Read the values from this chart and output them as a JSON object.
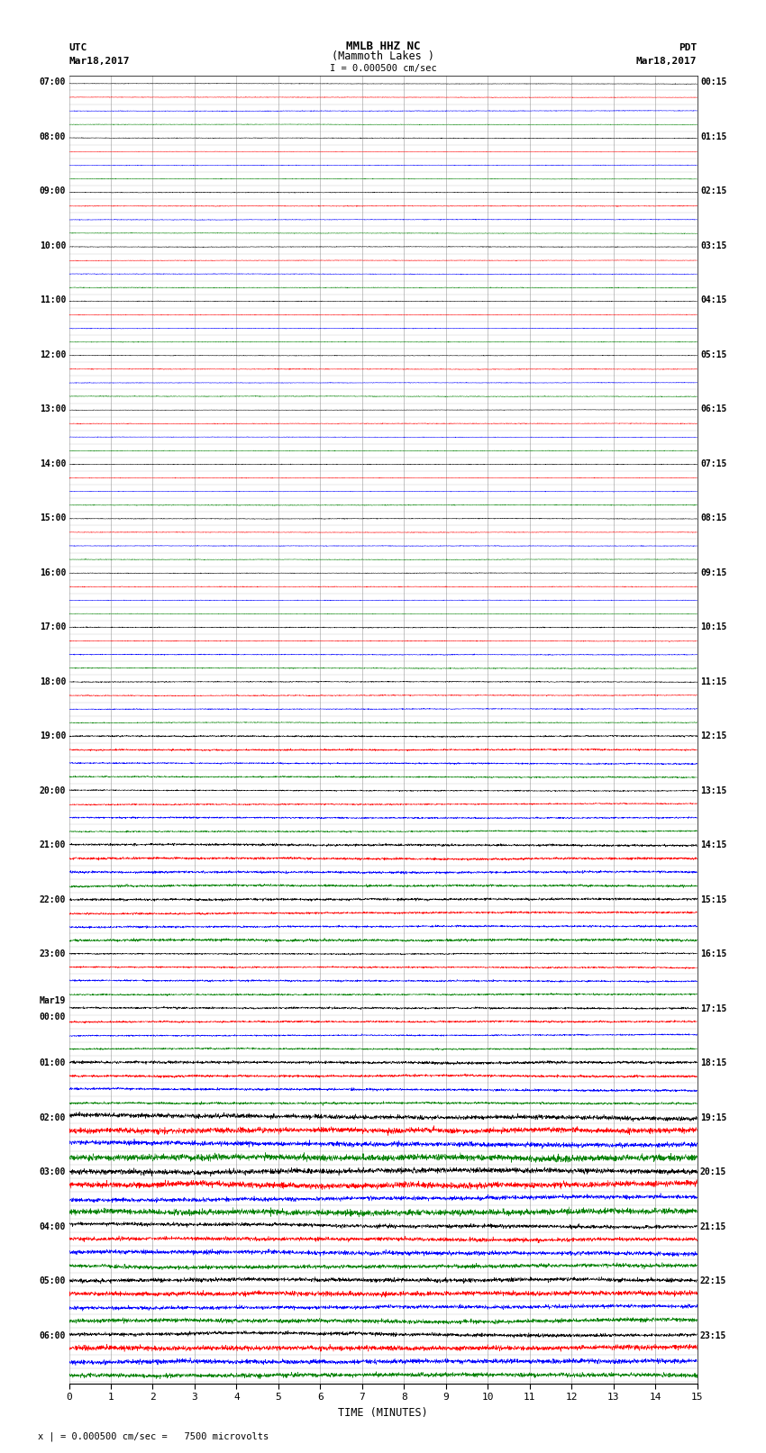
{
  "title_line1": "MMLB HHZ NC",
  "title_line2": "(Mammoth Lakes )",
  "title_line3": "I = 0.000500 cm/sec",
  "left_header_line1": "UTC",
  "left_header_line2": "Mar18,2017",
  "right_header_line1": "PDT",
  "right_header_line2": "Mar18,2017",
  "xlabel": "TIME (MINUTES)",
  "footer": "x | = 0.000500 cm/sec =   7500 microvolts",
  "utc_labels": [
    "07:00",
    "08:00",
    "09:00",
    "10:00",
    "11:00",
    "12:00",
    "13:00",
    "14:00",
    "15:00",
    "16:00",
    "17:00",
    "18:00",
    "19:00",
    "20:00",
    "21:00",
    "22:00",
    "23:00",
    "Mar19\n00:00",
    "01:00",
    "02:00",
    "03:00",
    "04:00",
    "05:00",
    "06:00"
  ],
  "utc_row_indices": [
    0,
    4,
    8,
    12,
    16,
    20,
    24,
    28,
    32,
    36,
    40,
    44,
    48,
    52,
    56,
    60,
    64,
    68,
    72,
    76,
    80,
    84,
    88,
    92
  ],
  "pdt_labels": [
    "00:15",
    "01:15",
    "02:15",
    "03:15",
    "04:15",
    "05:15",
    "06:15",
    "07:15",
    "08:15",
    "09:15",
    "10:15",
    "11:15",
    "12:15",
    "13:15",
    "14:15",
    "15:15",
    "16:15",
    "17:15",
    "18:15",
    "19:15",
    "20:15",
    "21:15",
    "22:15",
    "23:15"
  ],
  "pdt_row_indices": [
    0,
    4,
    8,
    12,
    16,
    20,
    24,
    28,
    32,
    36,
    40,
    44,
    48,
    52,
    56,
    60,
    64,
    68,
    72,
    76,
    80,
    84,
    88,
    92
  ],
  "n_rows": 96,
  "n_cols": 15,
  "colors_cycle": [
    "black",
    "red",
    "blue",
    "green"
  ],
  "background_color": "white",
  "grid_color": "#777777",
  "noise_seed": 42,
  "fig_width": 8.5,
  "fig_height": 16.13,
  "dpi": 100
}
